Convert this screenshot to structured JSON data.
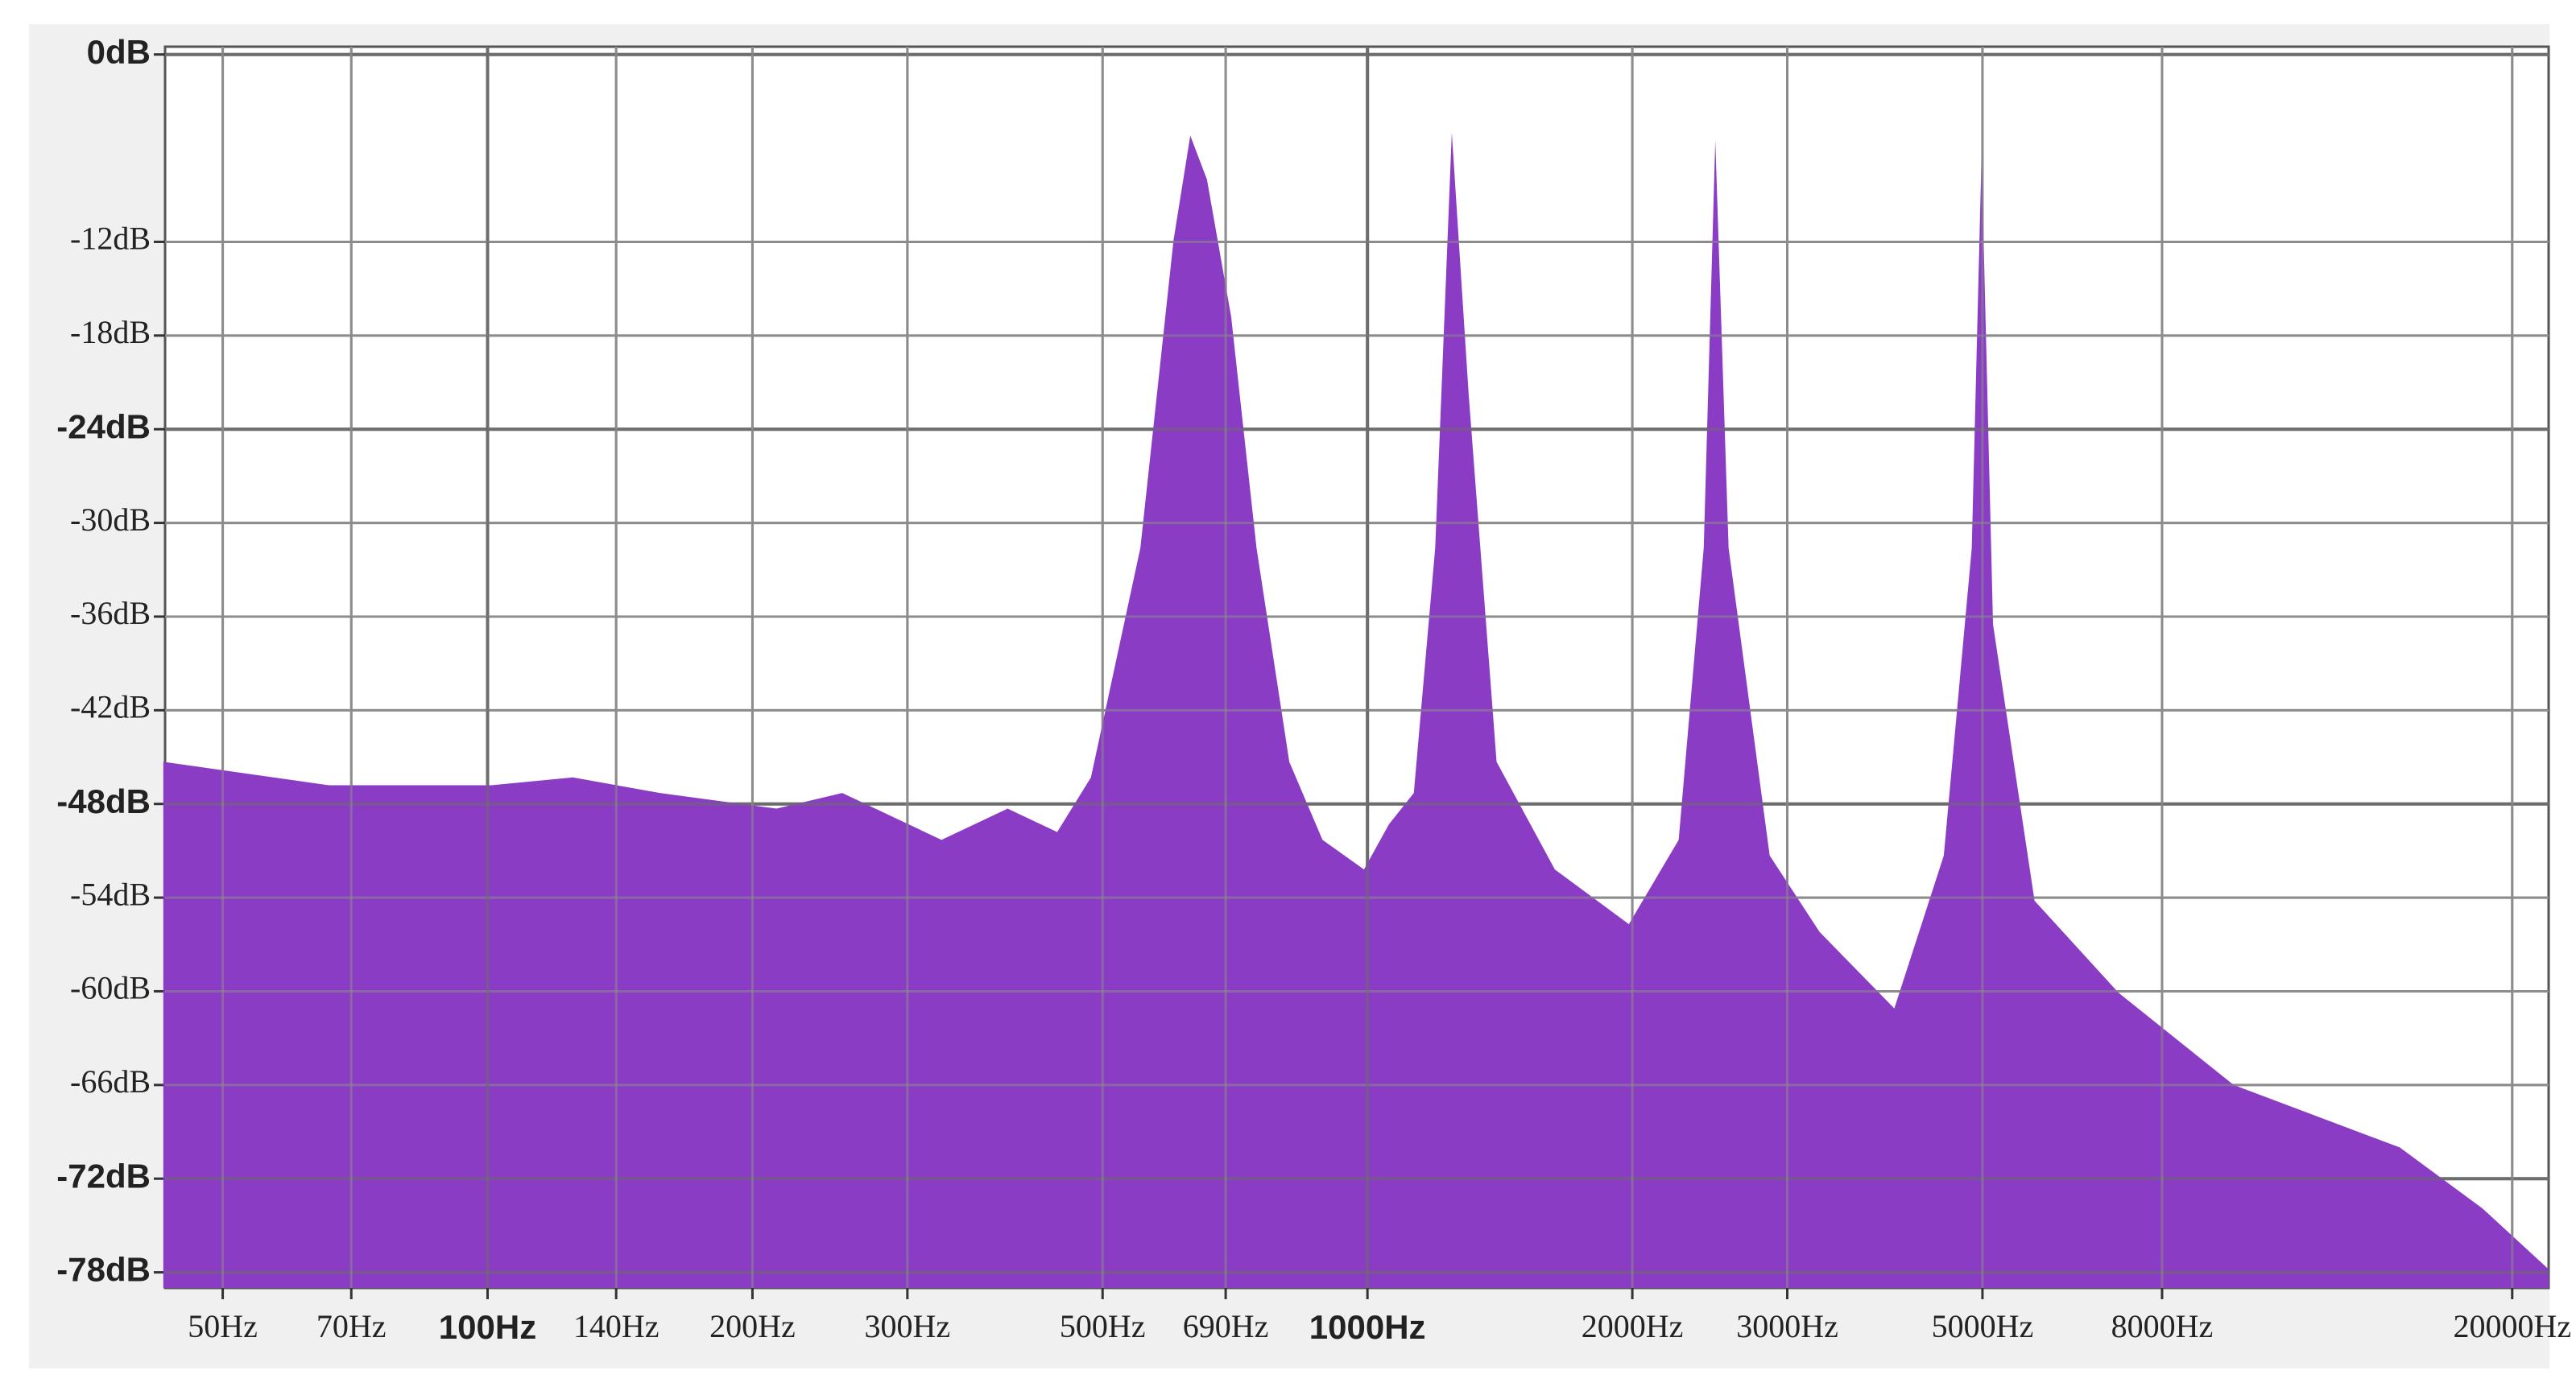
{
  "chart_data": {
    "type": "area",
    "x": [
      42.8,
      66,
      101,
      125,
      157,
      213,
      253,
      328,
      390,
      444,
      485,
      552,
      602,
      629,
      657,
      700,
      748,
      815,
      889,
      991,
      1058,
      1129,
      1194,
      1247,
      1303,
      1402,
      1633,
      1982,
      2258,
      2411,
      2485,
      2573,
      2865,
      3265,
      3970,
      4519,
      4862,
      4988,
      5140,
      5730,
      7140,
      9650,
      14900,
      18500,
      22000
    ],
    "values": [
      -45.3,
      -46.8,
      -46.8,
      -46.3,
      -47.3,
      -48.3,
      -47.3,
      -50.3,
      -48.3,
      -49.8,
      -46.3,
      -31.6,
      -11.9,
      -5.2,
      -8,
      -16.8,
      -31.6,
      -45.3,
      -50.3,
      -52.2,
      -49.3,
      -47.3,
      -31.6,
      -5,
      -21.7,
      -45.3,
      -52.2,
      -55.7,
      -50.3,
      -31.6,
      -5.5,
      -31.6,
      -51.3,
      -56.2,
      -61.1,
      -51.3,
      -31.6,
      -6.5,
      -36.5,
      -54.2,
      -60.1,
      -66,
      -70,
      -73.9,
      -77.8
    ],
    "color": "#8a3cc4",
    "log_x": true,
    "grid": true,
    "xlim": [
      43,
      22000
    ],
    "ylim": [
      -79,
      0.5
    ],
    "xticks": [
      {
        "value": 50,
        "label": "50Hz"
      },
      {
        "value": 70,
        "label": "70Hz"
      },
      {
        "value": 100,
        "label": "100Hz"
      },
      {
        "value": 140,
        "label": "140Hz"
      },
      {
        "value": 200,
        "label": "200Hz"
      },
      {
        "value": 300,
        "label": "300Hz"
      },
      {
        "value": 500,
        "label": "500Hz"
      },
      {
        "value": 690,
        "label": "690Hz"
      },
      {
        "value": 1000,
        "label": "1000Hz"
      },
      {
        "value": 2000,
        "label": "2000Hz"
      },
      {
        "value": 3000,
        "label": "3000Hz"
      },
      {
        "value": 5000,
        "label": "5000Hz"
      },
      {
        "value": 8000,
        "label": "8000Hz"
      },
      {
        "value": 20000,
        "label": "20000Hz"
      }
    ],
    "yticks": [
      {
        "value": 0,
        "label": "0dB"
      },
      {
        "value": -12,
        "label": "-12dB"
      },
      {
        "value": -18,
        "label": "-18dB"
      },
      {
        "value": -24,
        "label": "-24dB"
      },
      {
        "value": -30,
        "label": "-30dB"
      },
      {
        "value": -36,
        "label": "-36dB"
      },
      {
        "value": -42,
        "label": "-42dB"
      },
      {
        "value": -48,
        "label": "-48dB"
      },
      {
        "value": -54,
        "label": "-54dB"
      },
      {
        "value": -60,
        "label": "-60dB"
      },
      {
        "value": -66,
        "label": "-66dB"
      },
      {
        "value": -72,
        "label": "-72dB"
      },
      {
        "value": -78,
        "label": "-78dB"
      }
    ]
  }
}
